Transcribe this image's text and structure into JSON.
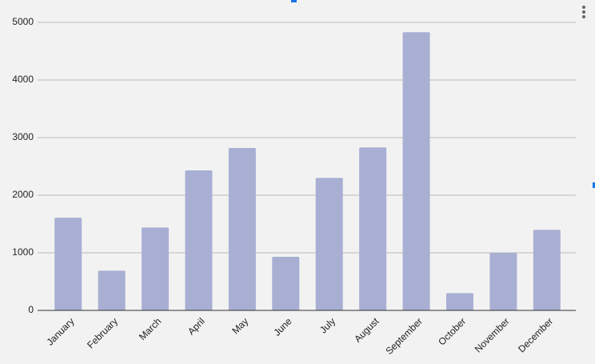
{
  "chart_data": {
    "type": "bar",
    "categories": [
      "January",
      "February",
      "March",
      "April",
      "May",
      "June",
      "July",
      "August",
      "September",
      "October",
      "November",
      "December"
    ],
    "values": [
      1610,
      690,
      1440,
      2430,
      2820,
      930,
      2300,
      2830,
      4830,
      300,
      1000,
      1400
    ],
    "color": "#a9afd3",
    "ylim": [
      0,
      5000
    ],
    "yticks": [
      0,
      1000,
      2000,
      3000,
      4000,
      5000
    ],
    "grid": true
  }
}
